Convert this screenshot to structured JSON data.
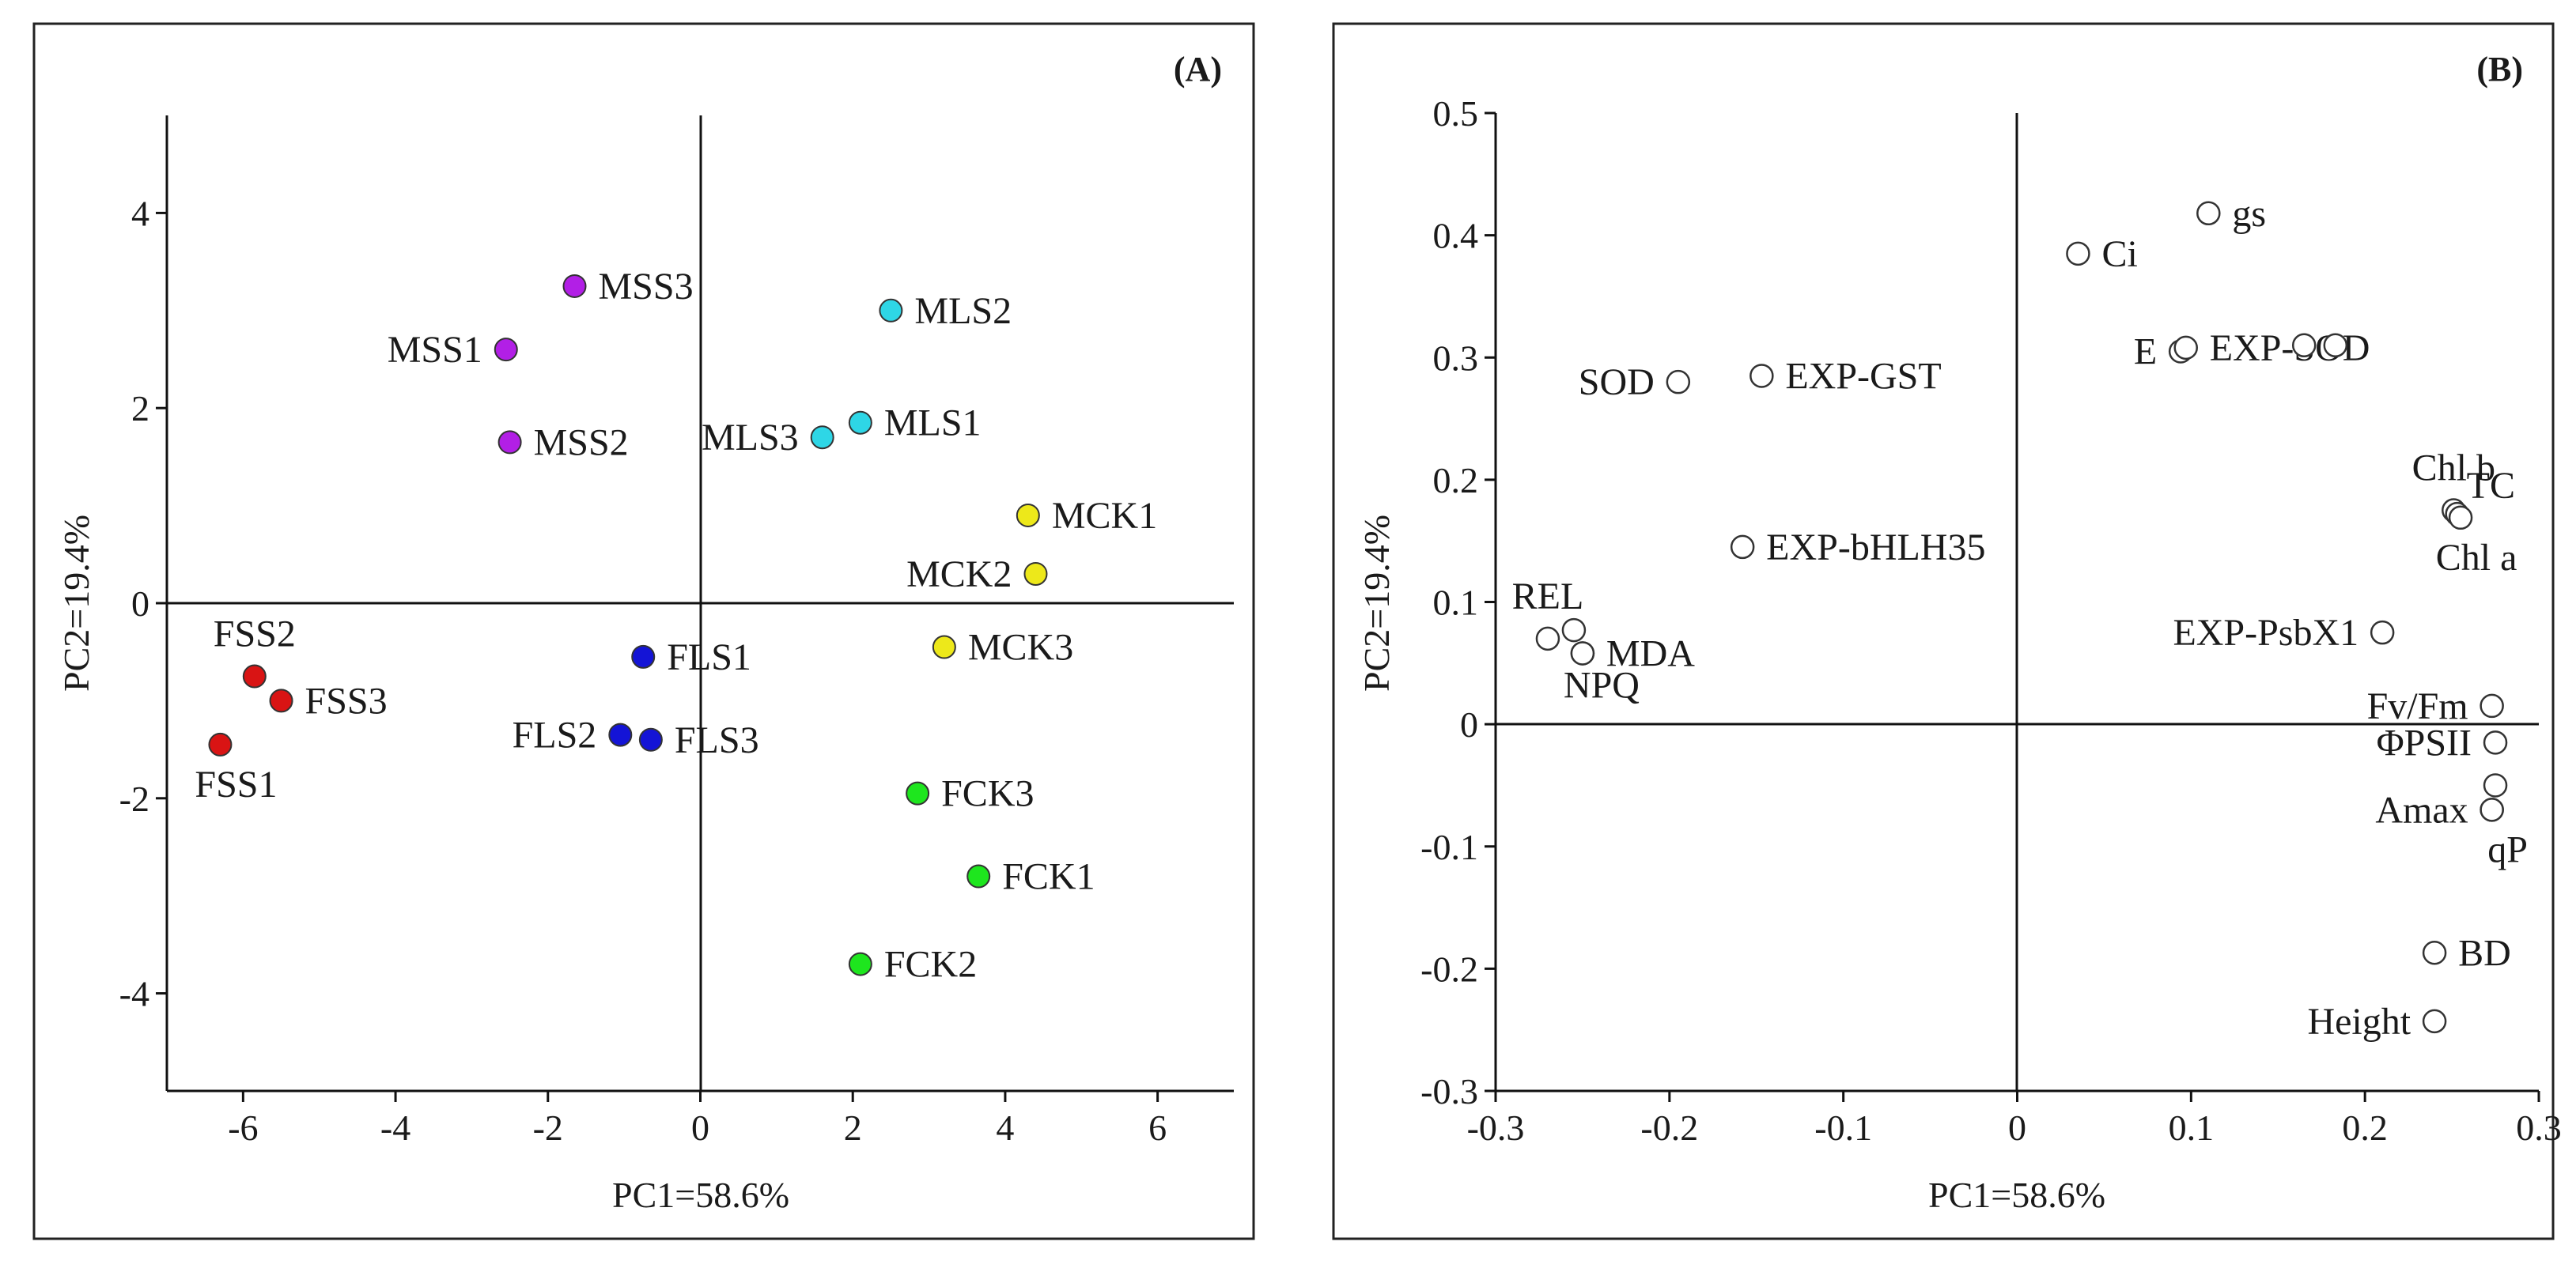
{
  "chart_data": [
    {
      "type": "scatter",
      "panel_label": "(A)",
      "xlabel": "PC1=58.6%",
      "ylabel": "PC2=19.4%",
      "xlim": [
        -7,
        7
      ],
      "ylim": [
        -5,
        5
      ],
      "xticks": [
        "-6",
        "-4",
        "-2",
        "0",
        "2",
        "4",
        "6"
      ],
      "xtick_values": [
        -6,
        -4,
        -2,
        0,
        2,
        4,
        6
      ],
      "yticks": [
        "4",
        "2",
        "0",
        "-2",
        "-4"
      ],
      "ytick_values": [
        4,
        2,
        0,
        -2,
        -4
      ],
      "marker": "filled-circle",
      "points": [
        {
          "label": "MSS3",
          "x": -1.65,
          "y": 3.25,
          "color": "#b21fe6",
          "pos": "right"
        },
        {
          "label": "MSS1",
          "x": -2.55,
          "y": 2.6,
          "color": "#b21fe6",
          "pos": "left"
        },
        {
          "label": "MSS2",
          "x": -2.5,
          "y": 1.65,
          "color": "#b21fe6",
          "pos": "right"
        },
        {
          "label": "MLS2",
          "x": 2.5,
          "y": 3.0,
          "color": "#2ed6e6",
          "pos": "right"
        },
        {
          "label": "MLS1",
          "x": 2.1,
          "y": 1.85,
          "color": "#2ed6e6",
          "pos": "right"
        },
        {
          "label": "MLS3",
          "x": 1.6,
          "y": 1.7,
          "color": "#2ed6e6",
          "pos": "left"
        },
        {
          "label": "MCK1",
          "x": 4.3,
          "y": 0.9,
          "color": "#ede81a",
          "pos": "right"
        },
        {
          "label": "MCK2",
          "x": 4.4,
          "y": 0.3,
          "color": "#ede81a",
          "pos": "left"
        },
        {
          "label": "MCK3",
          "x": 3.2,
          "y": -0.45,
          "color": "#ede81a",
          "pos": "right"
        },
        {
          "label": "FLS1",
          "x": -0.75,
          "y": -0.55,
          "color": "#1414d6",
          "pos": "right"
        },
        {
          "label": "FLS2",
          "x": -1.05,
          "y": -1.35,
          "color": "#1414d6",
          "pos": "left"
        },
        {
          "label": "FLS3",
          "x": -0.65,
          "y": -1.4,
          "color": "#1414d6",
          "pos": "right"
        },
        {
          "label": "FSS2",
          "x": -5.85,
          "y": -0.75,
          "color": "#d91414",
          "pos": "above"
        },
        {
          "label": "FSS3",
          "x": -5.5,
          "y": -1.0,
          "color": "#d91414",
          "pos": "right"
        },
        {
          "label": "FSS1",
          "x": -6.3,
          "y": -1.45,
          "color": "#d91414",
          "pos": "below"
        },
        {
          "label": "FCK3",
          "x": 2.85,
          "y": -1.95,
          "color": "#1ee61e",
          "pos": "right"
        },
        {
          "label": "FCK1",
          "x": 3.65,
          "y": -2.8,
          "color": "#1ee61e",
          "pos": "right"
        },
        {
          "label": "FCK2",
          "x": 2.1,
          "y": -3.7,
          "color": "#1ee61e",
          "pos": "right"
        }
      ]
    },
    {
      "type": "scatter",
      "panel_label": "(B)",
      "xlabel": "PC1=58.6%",
      "ylabel": "PC2=19.4%",
      "xlim": [
        -0.3,
        0.3
      ],
      "ylim": [
        -0.3,
        0.5
      ],
      "xticks": [
        "-0.3",
        "-0.2",
        "-0.1",
        "0",
        "0.1",
        "0.2",
        "0.3"
      ],
      "xtick_values": [
        -0.3,
        -0.2,
        -0.1,
        0,
        0.1,
        0.2,
        0.3
      ],
      "yticks": [
        "0.5",
        "0.4",
        "0.3",
        "0.2",
        "0.1",
        "0",
        "-0.1",
        "-0.2",
        "-0.3"
      ],
      "ytick_values": [
        0.5,
        0.4,
        0.3,
        0.2,
        0.1,
        0,
        -0.1,
        -0.2,
        -0.3
      ],
      "marker": "open-circle",
      "points": [
        {
          "label": "gs",
          "x": 0.11,
          "y": 0.418,
          "pos": "right"
        },
        {
          "label": "Ci",
          "x": 0.035,
          "y": 0.385,
          "pos": "right"
        },
        {
          "label": "E",
          "x": 0.094,
          "y": 0.305,
          "pos": "left"
        },
        {
          "label": "EXP-SOD",
          "x": 0.097,
          "y": 0.308,
          "pos": "right"
        },
        {
          "label": "",
          "x": 0.165,
          "y": 0.31,
          "pos": "none"
        },
        {
          "label": "",
          "x": 0.183,
          "y": 0.31,
          "pos": "none"
        },
        {
          "label": "SOD",
          "x": -0.195,
          "y": 0.28,
          "pos": "left"
        },
        {
          "label": "EXP-GST",
          "x": -0.147,
          "y": 0.285,
          "pos": "right"
        },
        {
          "label": "Chl b",
          "x": 0.251,
          "y": 0.175,
          "pos": "above"
        },
        {
          "label": "TC",
          "x": 0.253,
          "y": 0.172,
          "pos": "above-right"
        },
        {
          "label": "Chl a",
          "x": 0.255,
          "y": 0.169,
          "pos": "below"
        },
        {
          "label": "EXP-bHLH35",
          "x": -0.158,
          "y": 0.145,
          "pos": "right"
        },
        {
          "label": "REL",
          "x": -0.27,
          "y": 0.07,
          "pos": "above"
        },
        {
          "label": "",
          "x": -0.255,
          "y": 0.077,
          "pos": "none"
        },
        {
          "label": "MDA",
          "x": -0.25,
          "y": 0.058,
          "pos": "right"
        },
        {
          "label": "NPQ",
          "x": -0.25,
          "y": 0.058,
          "pos": "below-right"
        },
        {
          "label": "EXP-PsbX1",
          "x": 0.21,
          "y": 0.075,
          "pos": "left"
        },
        {
          "label": "Fv/Fm",
          "x": 0.273,
          "y": 0.015,
          "pos": "left"
        },
        {
          "label": "ΦPSII",
          "x": 0.275,
          "y": -0.015,
          "pos": "left"
        },
        {
          "label": "",
          "x": 0.275,
          "y": -0.05,
          "pos": "none"
        },
        {
          "label": "Amax",
          "x": 0.273,
          "y": -0.07,
          "pos": "left"
        },
        {
          "label": "qP",
          "x": 0.273,
          "y": -0.07,
          "pos": "below"
        },
        {
          "label": "BD",
          "x": 0.24,
          "y": -0.187,
          "pos": "right"
        },
        {
          "label": "Height",
          "x": 0.24,
          "y": -0.243,
          "pos": "left"
        }
      ]
    }
  ]
}
